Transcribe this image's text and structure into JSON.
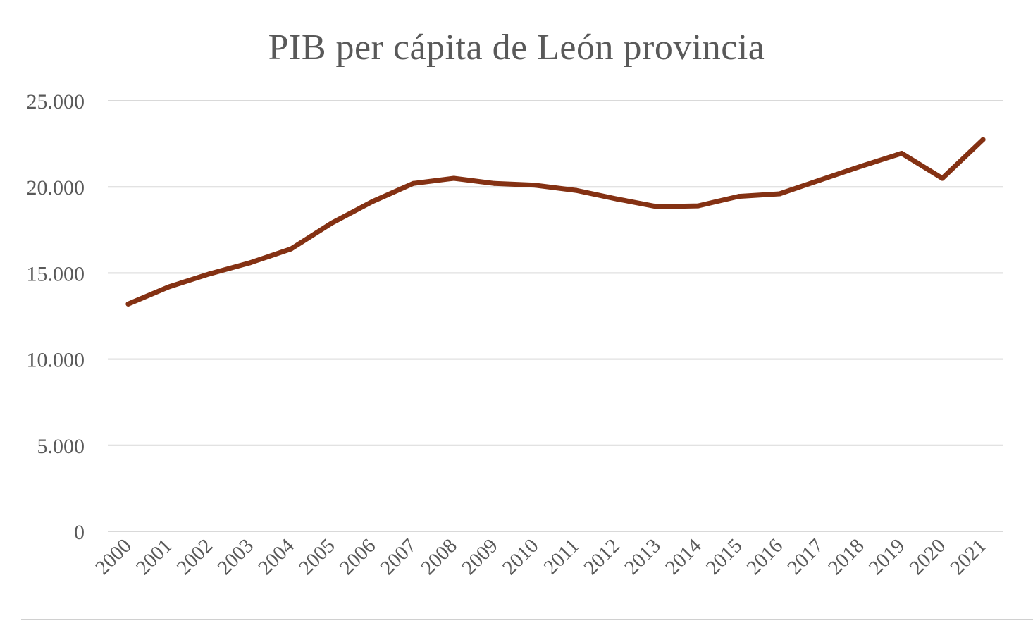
{
  "chart_data": {
    "type": "line",
    "title": "PIB per cápita de León provincia",
    "x": [
      "2000",
      "2001",
      "2002",
      "2003",
      "2004",
      "2005",
      "2006",
      "2007",
      "2008",
      "2009",
      "2010",
      "2011",
      "2012",
      "2013",
      "2014",
      "2015",
      "2016",
      "2017",
      "2018",
      "2019",
      "2020",
      "2021"
    ],
    "series": [
      {
        "values": [
          13200,
          14200,
          14950,
          15600,
          16400,
          17900,
          19150,
          20200,
          20500,
          20200,
          20100,
          19800,
          19300,
          18850,
          18900,
          19450,
          19600,
          20400,
          21200,
          21950,
          20500,
          22750
        ],
        "color": "#843113"
      }
    ],
    "y_ticks": [
      "0",
      "5.000",
      "10.000",
      "15.000",
      "20.000",
      "25.000"
    ],
    "ylim": [
      0,
      25000
    ],
    "grid": true,
    "legend": "none",
    "gridline_color": "#d9d9d9",
    "text_color": "#595959"
  }
}
